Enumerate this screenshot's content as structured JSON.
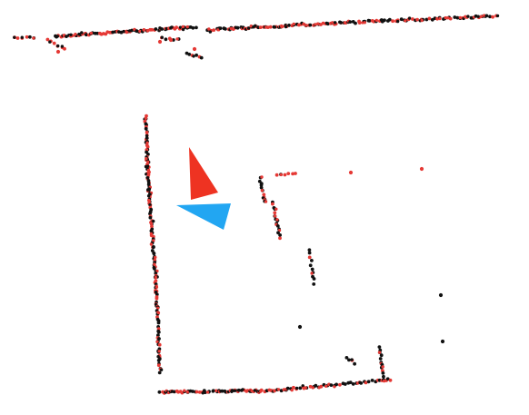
{
  "view": {
    "background": "#ffffff"
  },
  "colors": {
    "scan_a": "#111111",
    "scan_b": "#e53935",
    "pose_estimate": "#ee3322",
    "pose_reference": "#22a6f2"
  },
  "markers": [
    {
      "name": "pose-estimate-marker",
      "color_key": "pose_estimate",
      "shape": "triangle"
    },
    {
      "name": "pose-reference-marker",
      "color_key": "pose_reference",
      "shape": "triangle"
    }
  ]
}
